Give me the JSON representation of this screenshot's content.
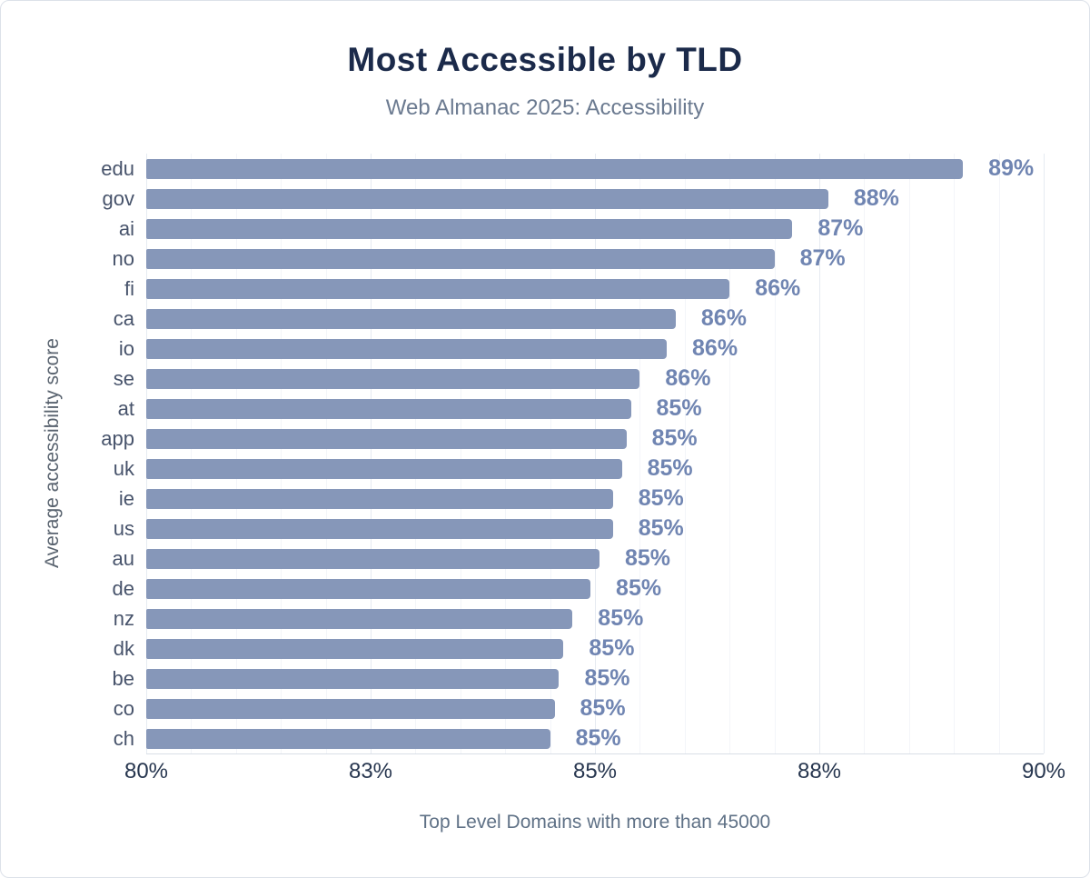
{
  "chart_data": {
    "type": "bar",
    "orientation": "horizontal",
    "title": "Most Accessible by TLD",
    "subtitle": "Web Almanac 2025: Accessibility",
    "ylabel": "Average accessibility score",
    "xlabel": "Top Level Domains with more than 45000",
    "xlim": [
      80,
      90
    ],
    "grid": "vertical",
    "x_ticks": [
      {
        "value": 80,
        "label": "80%"
      },
      {
        "value": 82.5,
        "label": "83%"
      },
      {
        "value": 85,
        "label": "85%"
      },
      {
        "value": 87.5,
        "label": "88%"
      },
      {
        "value": 90,
        "label": "90%"
      }
    ],
    "bars": [
      {
        "category": "edu",
        "value": 89.1,
        "label": "89%"
      },
      {
        "category": "gov",
        "value": 87.6,
        "label": "88%"
      },
      {
        "category": "ai",
        "value": 87.2,
        "label": "87%"
      },
      {
        "category": "no",
        "value": 87.0,
        "label": "87%"
      },
      {
        "category": "fi",
        "value": 86.5,
        "label": "86%"
      },
      {
        "category": "ca",
        "value": 85.9,
        "label": "86%"
      },
      {
        "category": "io",
        "value": 85.8,
        "label": "86%"
      },
      {
        "category": "se",
        "value": 85.5,
        "label": "86%"
      },
      {
        "category": "at",
        "value": 85.4,
        "label": "85%"
      },
      {
        "category": "app",
        "value": 85.35,
        "label": "85%"
      },
      {
        "category": "uk",
        "value": 85.3,
        "label": "85%"
      },
      {
        "category": "ie",
        "value": 85.2,
        "label": "85%"
      },
      {
        "category": "us",
        "value": 85.2,
        "label": "85%"
      },
      {
        "category": "au",
        "value": 85.05,
        "label": "85%"
      },
      {
        "category": "de",
        "value": 84.95,
        "label": "85%"
      },
      {
        "category": "nz",
        "value": 84.75,
        "label": "85%"
      },
      {
        "category": "dk",
        "value": 84.65,
        "label": "85%"
      },
      {
        "category": "be",
        "value": 84.6,
        "label": "85%"
      },
      {
        "category": "co",
        "value": 84.55,
        "label": "85%"
      },
      {
        "category": "ch",
        "value": 84.5,
        "label": "85%"
      }
    ],
    "colors": {
      "bar": "#8697b9",
      "value_label": "#7085b2",
      "title": "#1b2a4a",
      "subtitle": "#6b7a90",
      "axis_text": "#27364f",
      "category_text": "#47536b",
      "caption": "#5f7186",
      "y_label": "#59636f",
      "grid_major": "#e6eaf1",
      "grid_minor": "#f3f5f9",
      "axis_line": "#d9dee6"
    }
  }
}
